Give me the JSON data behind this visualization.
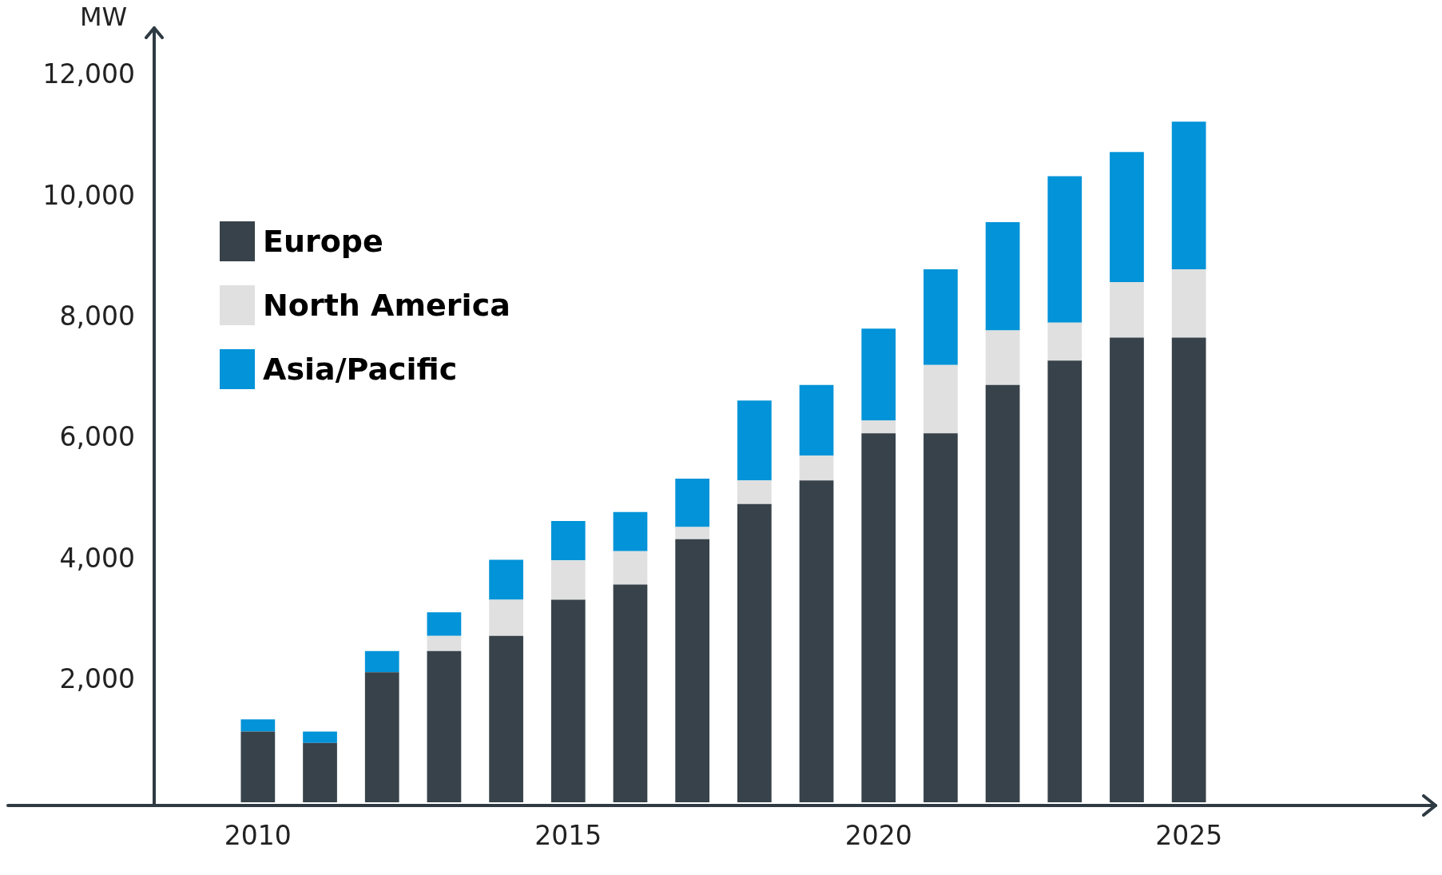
{
  "chart_data": {
    "type": "bar",
    "ylabel": "MW",
    "stacked": true,
    "categories": [
      "2010",
      null,
      null,
      null,
      null,
      "2015",
      null,
      null,
      null,
      null,
      "2020",
      null,
      null,
      null,
      null,
      "2025"
    ],
    "series": [
      {
        "name": "Europe",
        "color": "#37424a",
        "values": [
          1170,
          980,
          2150,
          2500,
          2750,
          3350,
          3600,
          4350,
          4930,
          5320,
          6100,
          6100,
          6900,
          7300,
          7680,
          7680
        ]
      },
      {
        "name": "North America",
        "color": "#dfe0df",
        "values": [
          0,
          0,
          0,
          250,
          600,
          650,
          550,
          200,
          390,
          410,
          210,
          1130,
          900,
          630,
          920,
          1130
        ]
      },
      {
        "name": "Asia/Pacific",
        "color": "#0293d8",
        "values": [
          200,
          190,
          350,
          390,
          660,
          650,
          650,
          800,
          1320,
          1170,
          1520,
          1580,
          1790,
          2420,
          2150,
          2440
        ]
      }
    ],
    "ylim": [
      0,
      12800
    ],
    "yticks": [
      {
        "value": 2000,
        "label": "2,000"
      },
      {
        "value": 4000,
        "label": "4,000"
      },
      {
        "value": 6000,
        "label": "6,000"
      },
      {
        "value": 8000,
        "label": "8,000"
      },
      {
        "value": 10000,
        "label": "10,000"
      },
      {
        "value": 12000,
        "label": "12,000"
      }
    ],
    "grid": false,
    "legend": "top left"
  }
}
